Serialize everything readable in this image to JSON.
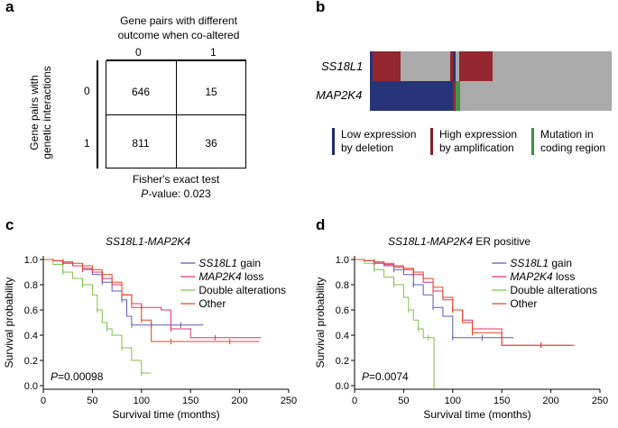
{
  "panel_a": {
    "letter": "a",
    "col_header_line1": "Gene pairs with different",
    "col_header_line2": "outcome when co-altered",
    "col_labels": [
      "0",
      "1"
    ],
    "row_header_line1": "Gene pairs with",
    "row_header_line2": "genetic interactions",
    "row_labels": [
      "0",
      "1"
    ],
    "cells": [
      [
        "646",
        "15"
      ],
      [
        "811",
        "36"
      ]
    ],
    "test_name": "Fisher's exact test",
    "pvalue_label": "P",
    "pvalue_text": "-value: 0.023"
  },
  "panel_b": {
    "letter": "b",
    "genes": [
      "SS18L1",
      "MAP2K4"
    ],
    "colors": {
      "deletion": "#1c2a73",
      "amplification": "#8e1c24",
      "mutation": "#3e8f3e",
      "none": "#a6a6a6"
    },
    "legend": [
      {
        "line1": "Low expression",
        "line2": "by deletion",
        "color": "#1c2a73"
      },
      {
        "line1": "High expression",
        "line2": "by amplification",
        "color": "#8e1c24"
      },
      {
        "line1": "Mutation in",
        "line2": "coding region",
        "color": "#3e8f3e"
      }
    ]
  },
  "chart_data": [
    {
      "type": "line",
      "panel": "c",
      "title": "SS18L1-MAP2K4",
      "xlabel": "Survival time (months)",
      "ylabel": "Survival probability",
      "xlim": [
        0,
        250
      ],
      "ylim": [
        0,
        1.0
      ],
      "xticks": [
        0,
        50,
        100,
        150,
        200,
        250
      ],
      "yticks": [
        0.0,
        0.2,
        0.4,
        0.6,
        0.8,
        1.0
      ],
      "annotation_p": "P",
      "annotation_value": "=0.00098",
      "legend_placement": "top-right",
      "series": [
        {
          "name": "SS18L1 gain",
          "italic": true,
          "color": "#5b5bb5",
          "x": [
            0,
            10,
            20,
            30,
            40,
            50,
            60,
            70,
            80,
            85,
            90,
            100,
            110,
            120,
            140,
            163
          ],
          "y": [
            1.0,
            0.99,
            0.98,
            0.95,
            0.92,
            0.88,
            0.82,
            0.75,
            0.68,
            0.55,
            0.48,
            0.48,
            0.48,
            0.48,
            0.48,
            0.48
          ]
        },
        {
          "name": "MAP2K4 loss",
          "italic": true,
          "color": "#e0306e",
          "x": [
            0,
            10,
            20,
            30,
            40,
            50,
            60,
            70,
            80,
            90,
            100,
            120,
            130,
            150,
            175,
            222
          ],
          "y": [
            1.0,
            0.99,
            0.97,
            0.95,
            0.93,
            0.9,
            0.85,
            0.8,
            0.72,
            0.65,
            0.62,
            0.6,
            0.45,
            0.38,
            0.38,
            0.38
          ]
        },
        {
          "name": "Double alterations",
          "italic": false,
          "color": "#7ec24e",
          "x": [
            0,
            10,
            20,
            30,
            40,
            50,
            55,
            60,
            65,
            70,
            80,
            90,
            100,
            110
          ],
          "y": [
            1.0,
            0.96,
            0.9,
            0.85,
            0.8,
            0.72,
            0.6,
            0.5,
            0.45,
            0.4,
            0.3,
            0.2,
            0.1,
            0.1
          ]
        },
        {
          "name": "Other",
          "italic": false,
          "color": "#e8431e",
          "x": [
            0,
            10,
            20,
            30,
            40,
            50,
            60,
            70,
            80,
            90,
            100,
            110,
            130,
            160,
            190,
            220
          ],
          "y": [
            1.0,
            0.99,
            0.98,
            0.97,
            0.95,
            0.92,
            0.88,
            0.82,
            0.72,
            0.62,
            0.52,
            0.35,
            0.35,
            0.35,
            0.35,
            0.35
          ]
        }
      ]
    },
    {
      "type": "line",
      "panel": "d",
      "title": "SS18L1-MAP2K4",
      "title_suffix": " ER positive",
      "xlabel": "Survival time (months)",
      "ylabel": "Survival probability",
      "xlim": [
        0,
        250
      ],
      "ylim": [
        0,
        1.0
      ],
      "xticks": [
        0,
        50,
        100,
        150,
        200,
        250
      ],
      "yticks": [
        0.0,
        0.2,
        0.4,
        0.6,
        0.8,
        1.0
      ],
      "annotation_p": "P",
      "annotation_value": "=0.0074",
      "legend_placement": "top-right",
      "series": [
        {
          "name": "SS18L1 gain",
          "italic": true,
          "color": "#5b5bb5",
          "x": [
            0,
            10,
            20,
            30,
            40,
            50,
            60,
            70,
            80,
            90,
            100,
            110,
            130,
            162
          ],
          "y": [
            1.0,
            0.99,
            0.97,
            0.95,
            0.92,
            0.88,
            0.8,
            0.72,
            0.62,
            0.55,
            0.38,
            0.38,
            0.38,
            0.38
          ]
        },
        {
          "name": "MAP2K4 loss",
          "italic": true,
          "color": "#e0306e",
          "x": [
            0,
            10,
            20,
            30,
            40,
            50,
            60,
            70,
            80,
            90,
            100,
            110,
            120,
            150,
            190,
            222
          ],
          "y": [
            1.0,
            0.99,
            0.98,
            0.96,
            0.94,
            0.92,
            0.88,
            0.82,
            0.75,
            0.68,
            0.6,
            0.52,
            0.45,
            0.32,
            0.32,
            0.32
          ]
        },
        {
          "name": "Double alterations",
          "italic": false,
          "color": "#7ec24e",
          "x": [
            0,
            10,
            20,
            30,
            40,
            50,
            55,
            60,
            65,
            70,
            75,
            80,
            81
          ],
          "y": [
            1.0,
            0.97,
            0.92,
            0.86,
            0.8,
            0.7,
            0.6,
            0.52,
            0.45,
            0.38,
            0.38,
            0.38,
            0.0
          ]
        },
        {
          "name": "Other",
          "italic": false,
          "color": "#e8431e",
          "x": [
            0,
            10,
            20,
            30,
            40,
            50,
            60,
            70,
            80,
            90,
            100,
            110,
            120,
            150,
            190,
            224
          ],
          "y": [
            1.0,
            0.99,
            0.98,
            0.97,
            0.95,
            0.93,
            0.9,
            0.85,
            0.78,
            0.7,
            0.6,
            0.5,
            0.42,
            0.32,
            0.32,
            0.32
          ]
        }
      ]
    }
  ]
}
